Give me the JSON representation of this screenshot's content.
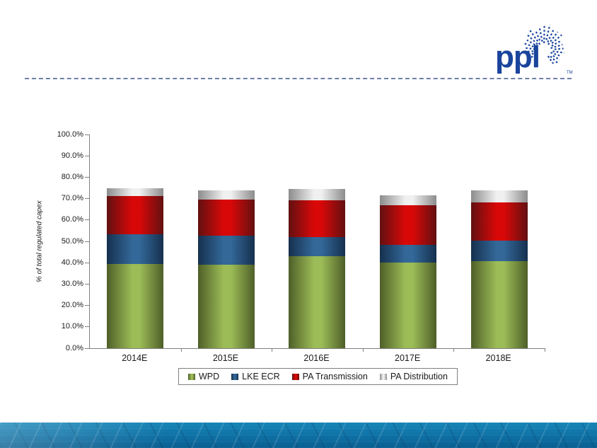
{
  "slide": {
    "logo": {
      "text": "ppl",
      "trademark": "TM"
    }
  },
  "colors": {
    "logo_blue": "#1A449C",
    "dashed_line": "#6E7FA8",
    "axis_gray": "#808080",
    "label_text": "#1A1A1A",
    "footer_blue": "#0F72A6"
  },
  "chart_data": {
    "type": "bar",
    "stacked": true,
    "title": "",
    "xlabel": "",
    "ylabel": "% of total regulated capex",
    "ylim": [
      0,
      100
    ],
    "ytick_step": 10,
    "ytick_labels": [
      "0.0%",
      "10.0%",
      "20.0%",
      "30.0%",
      "40.0%",
      "50.0%",
      "60.0%",
      "70.0%",
      "80.0%",
      "90.0%",
      "100.0%"
    ],
    "categories": [
      "2014E",
      "2015E",
      "2016E",
      "2017E",
      "2018E"
    ],
    "series": [
      {
        "name": "WPD",
        "color_center": "#9CBC57",
        "color_edge": "#4E5F28",
        "values": [
          39.5,
          39.2,
          43.1,
          40.2,
          40.6
        ]
      },
      {
        "name": "LKE ECR",
        "color_center": "#336899",
        "color_edge": "#16304E",
        "values": [
          13.8,
          13.3,
          8.9,
          8.1,
          9.7
        ]
      },
      {
        "name": "PA Transmission",
        "color_center": "#D90808",
        "color_edge": "#621011",
        "values": [
          17.8,
          17.1,
          17.3,
          18.6,
          17.9
        ]
      },
      {
        "name": "PA Distribution",
        "color_center": "#F0F0F0",
        "color_edge": "#8C8C8C",
        "values": [
          3.8,
          4.4,
          5.1,
          4.7,
          5.5
        ]
      }
    ],
    "bar_totals": [
      74.9,
      74.0,
      74.4,
      71.6,
      73.7
    ],
    "legend_position": "bottom",
    "grid": false
  }
}
